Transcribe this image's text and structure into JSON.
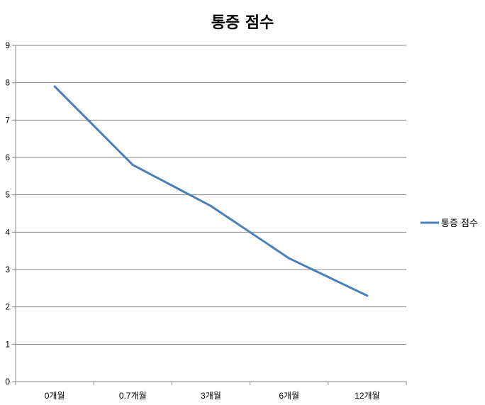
{
  "chart_data": {
    "type": "line",
    "title": "통증 점수",
    "categories": [
      "0개월",
      "0.7개월",
      "3개월",
      "6개월",
      "12개월"
    ],
    "series": [
      {
        "name": "통증 점수",
        "values": [
          7.9,
          5.8,
          4.7,
          3.3,
          2.3
        ],
        "color": "#4a7ebb"
      }
    ],
    "ylim": [
      0,
      9
    ],
    "yticks": [
      0,
      1,
      2,
      3,
      4,
      5,
      6,
      7,
      8,
      9
    ],
    "grid": true,
    "legend": "right"
  }
}
